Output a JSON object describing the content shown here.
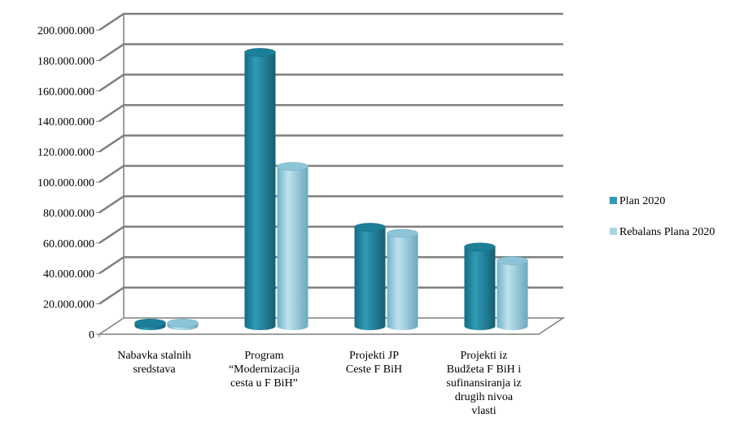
{
  "chart_data": {
    "type": "bar",
    "style": "3d-cylinder",
    "categories": [
      [
        "Nabavka stalnih",
        "sredstava"
      ],
      [
        "Program",
        "“Modernizacija",
        "cesta u F BiH”"
      ],
      [
        "Projekti JP",
        "Ceste F BiH"
      ],
      [
        "Projekti iz",
        "Budžeta F BiH i",
        "sufinansiranja iz",
        "drugih nivoa",
        "vlasti"
      ]
    ],
    "series": [
      {
        "name": "Plan 2020",
        "values": [
          2000000,
          180000000,
          65000000,
          52000000
        ]
      },
      {
        "name": "Rebalans Plana 2020",
        "values": [
          2000000,
          105000000,
          61000000,
          43000000
        ]
      }
    ],
    "yticks": [
      "0",
      "20.000.000",
      "40.000.000",
      "60.000.000",
      "80.000.000",
      "100.000.000",
      "120.000.000",
      "140.000.000",
      "160.000.000",
      "180.000.000",
      "200.000.000"
    ],
    "ylim": [
      0,
      200000000
    ],
    "grid": true,
    "legend_position": "right",
    "colors": {
      "Plan 2020": {
        "light": "#2f9bb6",
        "dark": "#156b80",
        "top": "#1b7f98"
      },
      "Rebalans Plana 2020": {
        "light": "#a9d6e5",
        "dark": "#6fb1c7",
        "top": "#8ec4d7"
      },
      "grid": "#7f7f7f"
    }
  }
}
